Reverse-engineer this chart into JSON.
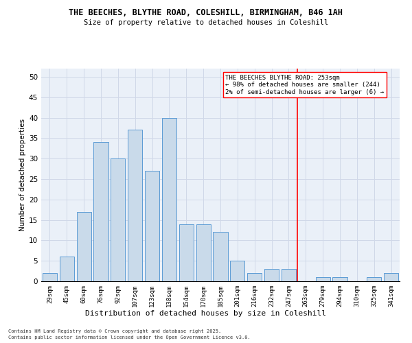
{
  "title": "THE BEECHES, BLYTHE ROAD, COLESHILL, BIRMINGHAM, B46 1AH",
  "subtitle": "Size of property relative to detached houses in Coleshill",
  "xlabel": "Distribution of detached houses by size in Coleshill",
  "ylabel": "Number of detached properties",
  "bar_labels": [
    "29sqm",
    "45sqm",
    "60sqm",
    "76sqm",
    "92sqm",
    "107sqm",
    "123sqm",
    "138sqm",
    "154sqm",
    "170sqm",
    "185sqm",
    "201sqm",
    "216sqm",
    "232sqm",
    "247sqm",
    "263sqm",
    "279sqm",
    "294sqm",
    "310sqm",
    "325sqm",
    "341sqm"
  ],
  "bar_values": [
    2,
    6,
    17,
    34,
    30,
    37,
    27,
    40,
    14,
    14,
    12,
    5,
    2,
    3,
    3,
    0,
    1,
    1,
    0,
    1,
    2
  ],
  "bar_color": "#c9daea",
  "bar_edgecolor": "#5b9bd5",
  "ylim": [
    0,
    52
  ],
  "yticks": [
    0,
    5,
    10,
    15,
    20,
    25,
    30,
    35,
    40,
    45,
    50
  ],
  "grid_color": "#d0d8e8",
  "bg_color": "#eaf0f8",
  "legend_line1": "THE BEECHES BLYTHE ROAD: 253sqm",
  "legend_line2": "← 98% of detached houses are smaller (244)",
  "legend_line3": "2% of semi-detached houses are larger (6) →",
  "vline_index": 14,
  "footer1": "Contains HM Land Registry data © Crown copyright and database right 2025.",
  "footer2": "Contains public sector information licensed under the Open Government Licence v3.0."
}
